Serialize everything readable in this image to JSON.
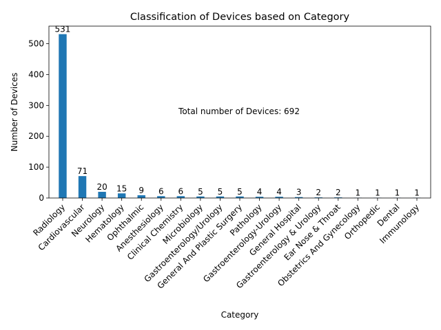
{
  "chart_data": {
    "type": "bar",
    "title": "Classification of Devices based on Category",
    "xlabel": "Category",
    "ylabel": "Number of Devices",
    "ylim": [
      0,
      557
    ],
    "yticks": [
      0,
      100,
      200,
      300,
      400,
      500
    ],
    "grid": false,
    "bar_color": "#1f77b4",
    "categories": [
      "Radiology",
      "Cardiovascular",
      "Neurology",
      "Hematology",
      "Ophthalmic",
      "Anesthesiology",
      "Clinical Chemistry",
      "Microbiology",
      "Gastroenterology/Urology",
      "General And Plastic Surgery",
      "Pathology",
      "Gastroenterology-Urology",
      "General Hospital",
      "Gastroenterology & Urology",
      "Ear Nose & Throat",
      "Obstetrics And Gynecology",
      "Orthopedic",
      "Dental",
      "Immunology"
    ],
    "values": [
      531,
      71,
      20,
      15,
      9,
      6,
      6,
      5,
      5,
      5,
      4,
      4,
      3,
      2,
      2,
      1,
      1,
      1,
      1
    ],
    "annotation": "Total number of Devices: 692"
  }
}
